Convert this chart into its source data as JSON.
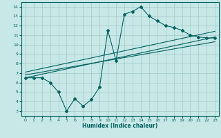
{
  "xlabel": "Humidex (Indice chaleur)",
  "bg_color": "#c8e8e8",
  "grid_color": "#a0c8c8",
  "line_color": "#006060",
  "xlim": [
    -0.5,
    23.5
  ],
  "ylim": [
    2.5,
    14.5
  ],
  "xticks": [
    0,
    1,
    2,
    3,
    4,
    5,
    6,
    7,
    8,
    9,
    10,
    11,
    12,
    13,
    14,
    15,
    16,
    17,
    18,
    19,
    20,
    21,
    22,
    23
  ],
  "yticks": [
    3,
    4,
    5,
    6,
    7,
    8,
    9,
    10,
    11,
    12,
    13,
    14
  ],
  "curve1_x": [
    0,
    1,
    2,
    3,
    4,
    5,
    6,
    7,
    8,
    9,
    10,
    11,
    12,
    13,
    14,
    15,
    16,
    17,
    18,
    19,
    20,
    21,
    22,
    23
  ],
  "curve1_y": [
    6.5,
    6.5,
    6.5,
    6.0,
    5.0,
    3.0,
    4.3,
    3.5,
    4.2,
    5.5,
    11.5,
    8.3,
    13.2,
    13.5,
    14.0,
    13.0,
    12.5,
    12.0,
    11.8,
    11.5,
    11.0,
    10.8,
    10.7,
    10.7
  ],
  "line1_x": [
    0,
    23
  ],
  "line1_y": [
    6.5,
    10.8
  ],
  "line2_x": [
    0,
    23
  ],
  "line2_y": [
    7.1,
    11.4
  ],
  "line3_x": [
    0,
    23
  ],
  "line3_y": [
    6.8,
    10.3
  ]
}
